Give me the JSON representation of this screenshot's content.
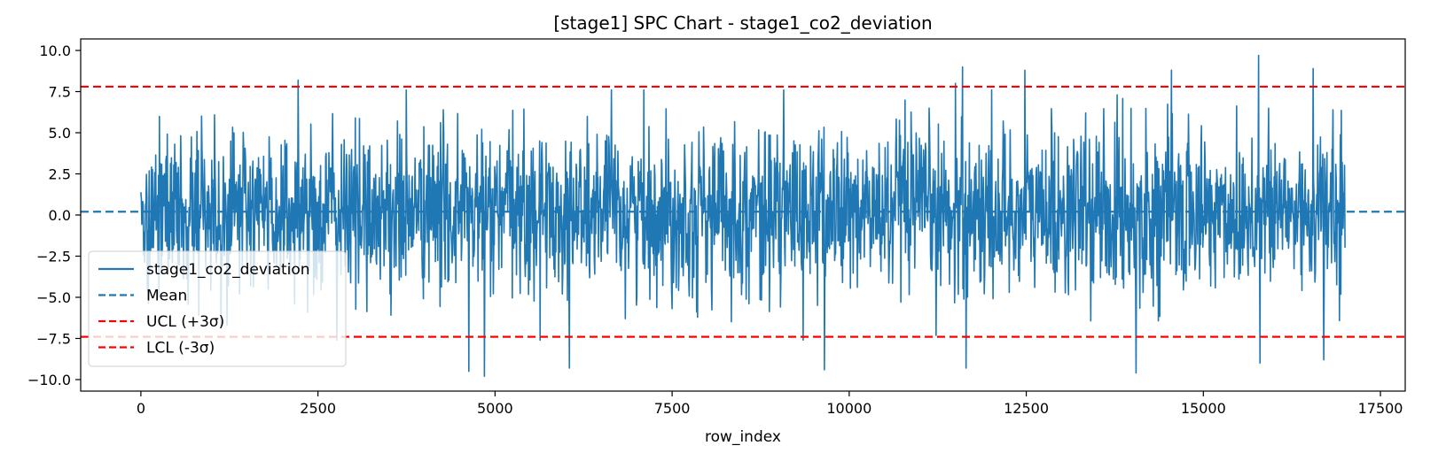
{
  "chart_data": {
    "type": "line",
    "title": "[stage1] SPC Chart - stage1_co2_deviation",
    "xlabel": "row_index",
    "ylabel": "",
    "xlim": [
      -850,
      17850
    ],
    "ylim": [
      -10.7,
      10.7
    ],
    "x_ticks": [
      0,
      2500,
      5000,
      7500,
      10000,
      12500,
      15000,
      17500
    ],
    "x_tick_labels": [
      "0",
      "2500",
      "5000",
      "7500",
      "10000",
      "12500",
      "15000",
      "17500"
    ],
    "y_ticks": [
      10.0,
      7.5,
      5.0,
      2.5,
      0.0,
      -2.5,
      -5.0,
      -7.5,
      -10.0
    ],
    "y_tick_labels": [
      "10.0",
      "7.5",
      "5.0",
      "2.5",
      "0.0",
      "−2.5",
      "−5.0",
      "−7.5",
      "−10.0"
    ],
    "grid": false,
    "legend_position": "lower-left",
    "series": [
      {
        "name": "stage1_co2_deviation",
        "color": "#1f77b4",
        "style": "solid",
        "x_range": [
          0,
          17000
        ],
        "approx_mean": 0.2,
        "approx_sigma": 2.5,
        "notable_points": [
          {
            "x": 2220,
            "y": 8.2
          },
          {
            "x": 4630,
            "y": -9.5
          },
          {
            "x": 4850,
            "y": -9.8
          },
          {
            "x": 6050,
            "y": -9.3
          },
          {
            "x": 9650,
            "y": -9.4
          },
          {
            "x": 11500,
            "y": 8.0
          },
          {
            "x": 11600,
            "y": 9.0
          },
          {
            "x": 11650,
            "y": -9.3
          },
          {
            "x": 12480,
            "y": 8.8
          },
          {
            "x": 14050,
            "y": -9.6
          },
          {
            "x": 14550,
            "y": 8.8
          },
          {
            "x": 15780,
            "y": 9.7
          },
          {
            "x": 15800,
            "y": -9.0
          },
          {
            "x": 16550,
            "y": 8.9
          },
          {
            "x": 16700,
            "y": -8.8
          }
        ]
      },
      {
        "name": "Mean",
        "color": "#1f77b4",
        "style": "dashed",
        "y": 0.2
      },
      {
        "name": "UCL (+3σ)",
        "color": "#ff0000",
        "style": "dashed",
        "y": 7.8
      },
      {
        "name": "LCL (-3σ)",
        "color": "#ff0000",
        "style": "dashed",
        "y": -7.4
      }
    ]
  }
}
